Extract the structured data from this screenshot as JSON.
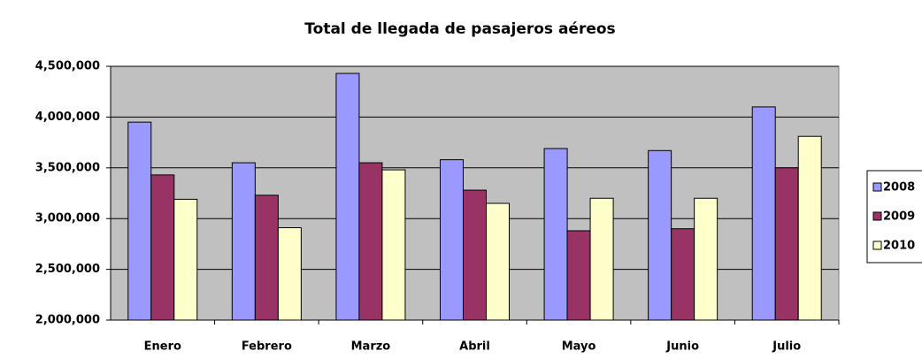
{
  "chart_data": {
    "type": "bar",
    "title": "Total de llegada de pasajeros aéreos",
    "categories": [
      "Enero",
      "Febrero",
      "Marzo",
      "Abril",
      "Mayo",
      "Junio",
      "Julio"
    ],
    "series": [
      {
        "name": "2008",
        "color": "#9999ff",
        "values": [
          3950000,
          3550000,
          4430000,
          3580000,
          3690000,
          3670000,
          4100000
        ]
      },
      {
        "name": "2009",
        "color": "#993366",
        "values": [
          3430000,
          3230000,
          3550000,
          3280000,
          2880000,
          2900000,
          3500000
        ]
      },
      {
        "name": "2010",
        "color": "#ffffcc",
        "values": [
          3190000,
          2910000,
          3480000,
          3150000,
          3200000,
          3200000,
          3810000
        ]
      }
    ],
    "ylim": [
      2000000,
      4500000
    ],
    "yticks": [
      {
        "value": 2000000,
        "label": "2,000,000"
      },
      {
        "value": 2500000,
        "label": "2,500,000"
      },
      {
        "value": 3000000,
        "label": "3,000,000"
      },
      {
        "value": 3500000,
        "label": "3,500,000"
      },
      {
        "value": 4000000,
        "label": "4,000,000"
      },
      {
        "value": 4500000,
        "label": "4,500,000"
      }
    ],
    "grid": true,
    "legend": "right",
    "background": "#c0c0c0"
  }
}
